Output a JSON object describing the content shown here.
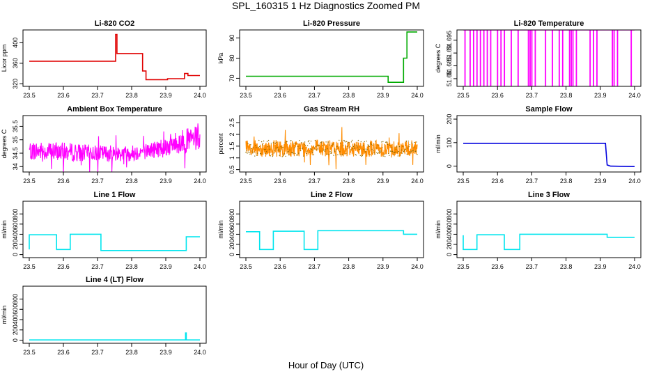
{
  "figure": {
    "suptitle": "SPL_160315  1 Hz Diagnostics Zoomed PM",
    "xlabel": "Hour of Day (UTC)"
  },
  "chart_data": [
    {
      "type": "line",
      "title": "Li-820 CO2",
      "ylabel": "Licor ppm",
      "color": "#e00000",
      "xlim": [
        23.5,
        24.0
      ],
      "xticks": [
        "23.5",
        "23.6",
        "23.7",
        "23.8",
        "23.9",
        "24.0"
      ],
      "ylim": [
        315,
        425
      ],
      "yticks": [
        320,
        360,
        400
      ],
      "x": [
        23.5,
        23.753,
        23.753,
        23.757,
        23.757,
        23.832,
        23.832,
        23.842,
        23.842,
        23.905,
        23.905,
        23.955,
        23.955,
        23.965,
        23.965,
        24.0
      ],
      "y": [
        364,
        364,
        416,
        416,
        379,
        379,
        345,
        345,
        328,
        328,
        330,
        330,
        340,
        340,
        336,
        336
      ]
    },
    {
      "type": "line",
      "title": "Li-820 Pressure",
      "ylabel": "kPa",
      "color": "#00aa00",
      "xlim": [
        23.5,
        24.0
      ],
      "xticks": [
        "23.5",
        "23.6",
        "23.7",
        "23.8",
        "23.9",
        "24.0"
      ],
      "ylim": [
        66,
        94
      ],
      "yticks": [
        70,
        80,
        90
      ],
      "x": [
        23.5,
        23.915,
        23.915,
        23.96,
        23.96,
        23.97,
        23.97,
        24.0
      ],
      "y": [
        71,
        71,
        68,
        68,
        80,
        80,
        93,
        93
      ]
    },
    {
      "type": "line",
      "title": "Li-820 Temperature",
      "ylabel": "degrees C",
      "color": "#ff00ff",
      "xlim": [
        23.5,
        24.0
      ],
      "xticks": [
        "23.5",
        "23.6",
        "23.7",
        "23.8",
        "23.9",
        "24.0"
      ],
      "ylim": [
        51.677,
        51.699
      ],
      "yticks": [
        51.68,
        51.685,
        51.69,
        51.695
      ],
      "baseline": 51.699,
      "dip": 51.677,
      "dips": [
        23.505,
        23.52,
        23.53,
        23.54,
        23.55,
        23.56,
        23.57,
        23.58,
        23.6,
        23.61,
        23.62,
        23.64,
        23.66,
        23.69,
        23.695,
        23.7,
        23.71,
        23.74,
        23.76,
        23.78,
        23.79,
        23.81,
        23.815,
        23.82,
        23.83,
        23.87,
        23.88,
        23.89,
        23.935,
        23.94,
        23.95,
        23.99
      ]
    },
    {
      "type": "noise",
      "title": "Ambient Box Temperature",
      "ylabel": "degrees C",
      "color": "#ff00ff",
      "xlim": [
        23.5,
        24.0
      ],
      "xticks": [
        "23.5",
        "23.6",
        "23.7",
        "23.8",
        "23.9",
        "24.0"
      ],
      "ylim": [
        33.8,
        35.9
      ],
      "yticks": [
        34.0,
        34.5,
        35.0,
        35.5
      ],
      "x": [
        23.5,
        23.6,
        23.7,
        23.8,
        23.85,
        23.9,
        23.95,
        24.0
      ],
      "mean": [
        34.6,
        34.55,
        34.5,
        34.5,
        34.6,
        34.75,
        34.95,
        35.05
      ],
      "spread": [
        0.35,
        0.35,
        0.3,
        0.3,
        0.3,
        0.4,
        0.45,
        0.45
      ]
    },
    {
      "type": "noise",
      "title": "Gas Stream RH",
      "ylabel": "percent",
      "color": "#ff8c00",
      "color2": "#8b6a00",
      "xlim": [
        23.5,
        24.0
      ],
      "xticks": [
        "23.5",
        "23.6",
        "23.7",
        "23.8",
        "23.9",
        "24.0"
      ],
      "ylim": [
        0.4,
        2.8
      ],
      "yticks": [
        0.5,
        1.0,
        1.5,
        2.0,
        2.5
      ],
      "x": [
        23.5,
        24.0
      ],
      "mean": [
        1.4,
        1.4
      ],
      "spread": [
        0.35,
        0.35
      ]
    },
    {
      "type": "line",
      "title": "Sample Flow",
      "ylabel": "ml/min",
      "color": "#0000dd",
      "xlim": [
        23.5,
        24.0
      ],
      "xticks": [
        "23.5",
        "23.6",
        "23.7",
        "23.8",
        "23.9",
        "24.0"
      ],
      "ylim": [
        -25,
        215
      ],
      "yticks": [
        0,
        100,
        200
      ],
      "x": [
        23.5,
        23.915,
        23.92,
        23.93,
        24.0
      ],
      "y": [
        97,
        97,
        5,
        0,
        -2
      ]
    },
    {
      "type": "line",
      "title": "Line 1 Flow",
      "ylabel": "ml/min",
      "color": "#00e5ee",
      "xlim": [
        23.5,
        24.0
      ],
      "xticks": [
        "23.5",
        "23.6",
        "23.7",
        "23.8",
        "23.9",
        "24.0"
      ],
      "ylim": [
        -60,
        1050
      ],
      "yticks": [
        0,
        200,
        400,
        600,
        800
      ],
      "x": [
        23.5,
        23.5,
        23.58,
        23.58,
        23.62,
        23.62,
        23.71,
        23.71,
        23.96,
        23.96,
        24.0
      ],
      "y": [
        100,
        390,
        390,
        100,
        100,
        400,
        400,
        80,
        80,
        350,
        350
      ]
    },
    {
      "type": "line",
      "title": "Line 2 Flow",
      "ylabel": "ml/min",
      "color": "#00e5ee",
      "xlim": [
        23.5,
        24.0
      ],
      "xticks": [
        "23.5",
        "23.6",
        "23.7",
        "23.8",
        "23.9",
        "24.0"
      ],
      "ylim": [
        -60,
        1050
      ],
      "yticks": [
        0,
        200,
        400,
        600,
        800
      ],
      "x": [
        23.5,
        23.54,
        23.54,
        23.58,
        23.58,
        23.67,
        23.67,
        23.71,
        23.71,
        23.96,
        23.96,
        24.0
      ],
      "y": [
        450,
        450,
        100,
        100,
        460,
        460,
        100,
        100,
        470,
        470,
        400,
        400
      ]
    },
    {
      "type": "line",
      "title": "Line 3 Flow",
      "ylabel": "ml/min",
      "color": "#00e5ee",
      "xlim": [
        23.5,
        24.0
      ],
      "xticks": [
        "23.5",
        "23.6",
        "23.7",
        "23.8",
        "23.9",
        "24.0"
      ],
      "ylim": [
        -60,
        1050
      ],
      "yticks": [
        0,
        200,
        400,
        600,
        800
      ],
      "x": [
        23.5,
        23.5,
        23.54,
        23.54,
        23.62,
        23.62,
        23.665,
        23.665,
        23.92,
        23.92,
        24.0
      ],
      "y": [
        380,
        100,
        100,
        390,
        390,
        100,
        100,
        400,
        400,
        340,
        340
      ]
    },
    {
      "type": "line",
      "title": "Line 4 (LT) Flow",
      "ylabel": "ml/min",
      "color": "#00e5ee",
      "xlim": [
        23.5,
        24.0
      ],
      "xticks": [
        "23.5",
        "23.6",
        "23.7",
        "23.8",
        "23.9",
        "24.0"
      ],
      "ylim": [
        -60,
        1050
      ],
      "yticks": [
        0,
        200,
        400,
        600,
        800
      ],
      "x": [
        23.5,
        23.958,
        23.958,
        23.96,
        23.96,
        24.0
      ],
      "y": [
        5,
        5,
        140,
        140,
        5,
        5
      ]
    }
  ]
}
